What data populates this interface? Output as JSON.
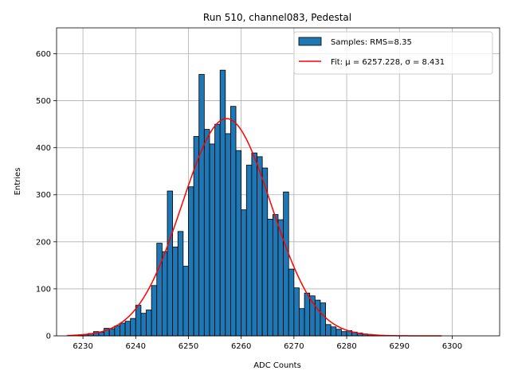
{
  "chart_data": {
    "type": "bar",
    "title": "Run 510, channel083, Pedestal",
    "xlabel": "ADC Counts",
    "ylabel": "Entries",
    "xlim": [
      6225,
      6309
    ],
    "ylim": [
      0,
      655
    ],
    "xticks": [
      6230,
      6240,
      6250,
      6260,
      6270,
      6280,
      6290,
      6300
    ],
    "yticks": [
      0,
      100,
      200,
      300,
      400,
      500,
      600
    ],
    "grid": true,
    "legend_position": "top-right",
    "histogram": {
      "name": "Samples: RMS=8.35",
      "color": "#1f77b4",
      "edgecolor": "#000000",
      "bins": [
        6227,
        6228,
        6229,
        6230,
        6231,
        6232,
        6233,
        6234,
        6235,
        6236,
        6237,
        6238,
        6239,
        6240,
        6241,
        6242,
        6243,
        6244,
        6245,
        6246,
        6247,
        6248,
        6249,
        6250,
        6251,
        6252,
        6253,
        6254,
        6255,
        6256,
        6257,
        6258,
        6259,
        6260,
        6261,
        6262,
        6263,
        6264,
        6265,
        6266,
        6267,
        6268,
        6269,
        6270,
        6271,
        6272,
        6273,
        6274,
        6275,
        6276,
        6277,
        6278,
        6279,
        6280,
        6281,
        6282,
        6283,
        6284,
        6285,
        6286,
        6287,
        6288,
        6289,
        6290,
        6291,
        6292,
        6293,
        6294,
        6295,
        6296,
        6297,
        6298,
        6299,
        6300,
        6301,
        6302,
        6303,
        6304,
        6305
      ],
      "values": [
        0,
        0,
        1,
        3,
        5,
        9,
        8,
        16,
        15,
        21,
        27,
        31,
        37,
        65,
        48,
        55,
        107,
        197,
        179,
        308,
        189,
        222,
        148,
        317,
        424,
        556,
        439,
        408,
        450,
        565,
        430,
        488,
        394,
        268,
        363,
        389,
        381,
        357,
        248,
        258,
        247,
        306,
        142,
        102,
        58,
        91,
        85,
        76,
        70,
        24,
        19,
        14,
        9,
        11,
        8,
        6,
        4,
        3,
        2,
        1,
        1,
        0,
        0,
        0,
        0,
        0,
        0,
        0,
        0,
        0,
        0,
        0,
        0,
        0,
        0,
        0,
        0,
        0,
        0
      ]
    },
    "fit": {
      "name": "Fit: μ = 6257.228, σ = 8.431",
      "color": "#ff0000",
      "mu": 6257.228,
      "sigma": 8.431,
      "peak": 462,
      "x_range": [
        6227,
        6298
      ]
    }
  }
}
